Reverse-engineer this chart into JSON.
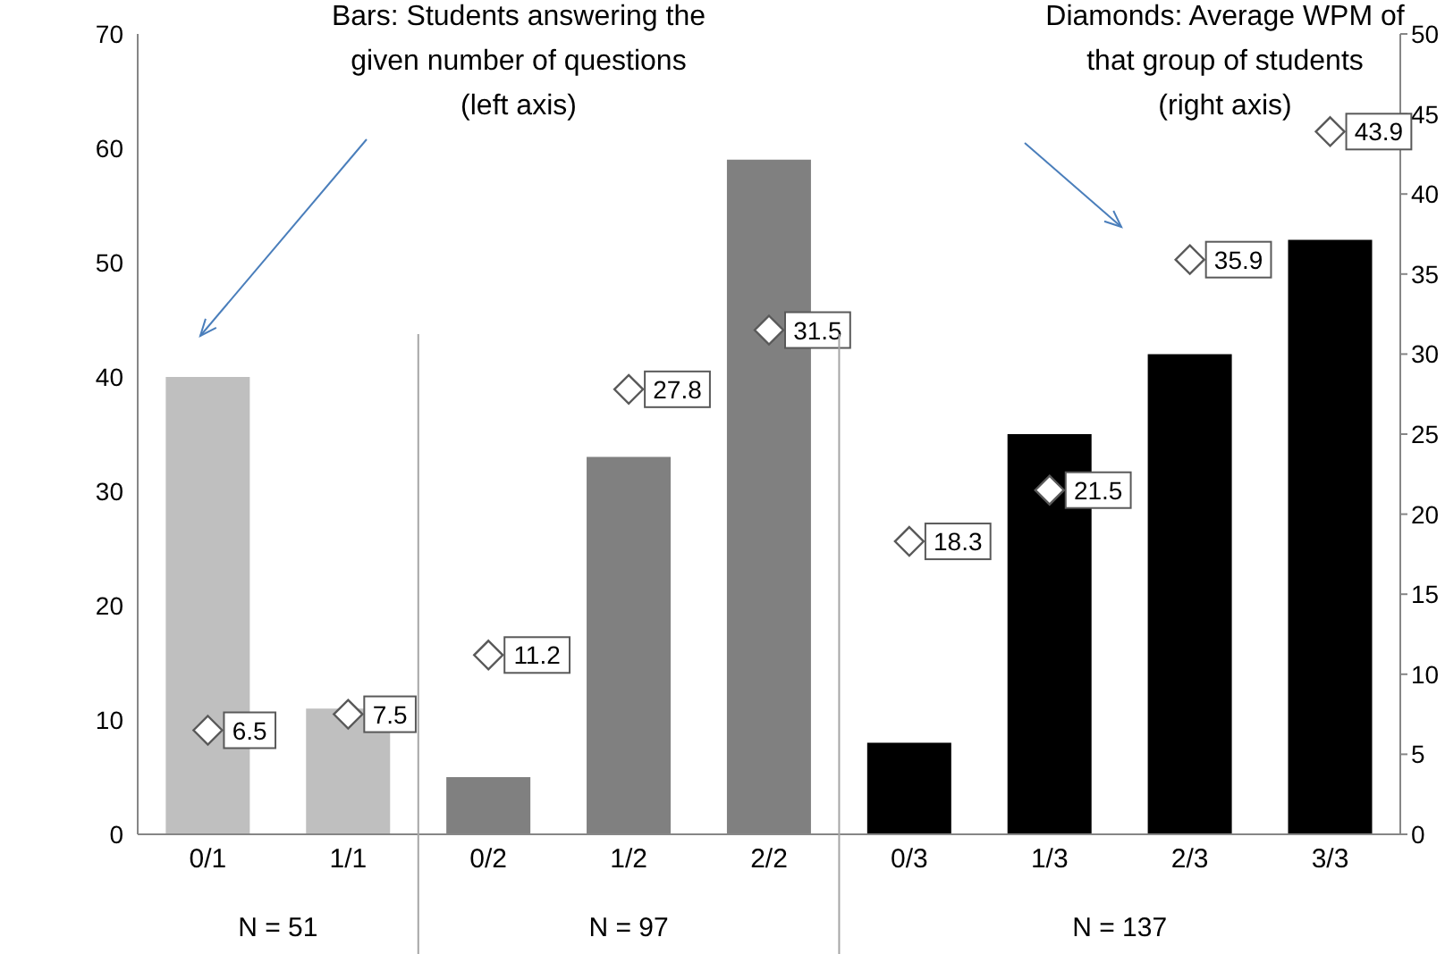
{
  "chart_data": {
    "type": "bar",
    "categories": [
      "0/1",
      "1/1",
      "0/2",
      "1/2",
      "2/2",
      "0/3",
      "1/3",
      "2/3",
      "3/3"
    ],
    "series": [
      {
        "values": [
          40,
          11,
          5,
          33,
          59,
          8,
          35,
          42,
          52
        ],
        "colors": [
          "#bfbfbf",
          "#bfbfbf",
          "#808080",
          "#808080",
          "#808080",
          "#000000",
          "#000000",
          "#000000",
          "#000000"
        ]
      },
      {
        "type": "scatter",
        "axis": "y2",
        "color": "#ffffff",
        "marker": "diamond",
        "values": [
          6.5,
          7.5,
          11.2,
          27.8,
          31.5,
          18.3,
          21.5,
          35.9,
          43.9
        ],
        "value_labels": [
          "6.5",
          "7.5",
          "11.2",
          "27.8",
          "31.5",
          "18.3",
          "21.5",
          "35.9",
          "43.9"
        ]
      }
    ],
    "ylim": [
      0,
      70
    ],
    "yticks": [
      0,
      10,
      20,
      30,
      40,
      50,
      60,
      70
    ],
    "y2lim": [
      0,
      50
    ],
    "y2ticks": [
      0,
      5,
      10,
      15,
      20,
      25,
      30,
      35,
      40,
      45,
      50
    ],
    "annotations": [
      "Bars: Students answering the\ngiven number of questions\n(left axis)",
      "Diamonds: Average WPM of\nthat group of students\n(right axis)",
      "N = 51",
      "N = 97",
      "N = 137"
    ]
  }
}
